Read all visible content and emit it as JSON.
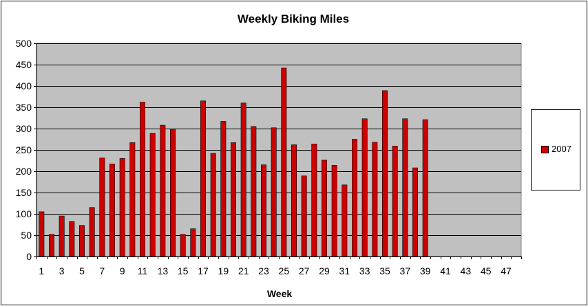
{
  "chart_data": {
    "type": "bar",
    "title": "Weekly Biking Miles",
    "xlabel": "Week",
    "ylabel": "",
    "ylim": [
      0,
      500
    ],
    "yticks": [
      0,
      50,
      100,
      150,
      200,
      250,
      300,
      350,
      400,
      450,
      500
    ],
    "categories": [
      1,
      2,
      3,
      4,
      5,
      6,
      7,
      8,
      9,
      10,
      11,
      12,
      13,
      14,
      15,
      16,
      17,
      18,
      19,
      20,
      21,
      22,
      23,
      24,
      25,
      26,
      27,
      28,
      29,
      30,
      31,
      32,
      33,
      34,
      35,
      36,
      37,
      38,
      39,
      40,
      41,
      42,
      43,
      44,
      45,
      46,
      47,
      48
    ],
    "xtick_labels": [
      "1",
      "3",
      "5",
      "7",
      "9",
      "11",
      "13",
      "15",
      "17",
      "19",
      "21",
      "23",
      "25",
      "27",
      "29",
      "31",
      "33",
      "35",
      "37",
      "39",
      "41",
      "43",
      "45",
      "47"
    ],
    "series": [
      {
        "name": "2007",
        "values": [
          105,
          52,
          95,
          82,
          73,
          115,
          231,
          217,
          230,
          267,
          362,
          289,
          308,
          299,
          52,
          65,
          365,
          242,
          317,
          267,
          360,
          305,
          215,
          302,
          442,
          262,
          189,
          264,
          226,
          214,
          168,
          275,
          323,
          268,
          389,
          259,
          323,
          208,
          321,
          null,
          null,
          null,
          null,
          null,
          null,
          null,
          null,
          null
        ]
      }
    ],
    "grid": true,
    "legend_position": "right",
    "colors": {
      "bar": "#cc0000",
      "plot_background": "#c0c0c0",
      "gridline": "#000000"
    }
  }
}
